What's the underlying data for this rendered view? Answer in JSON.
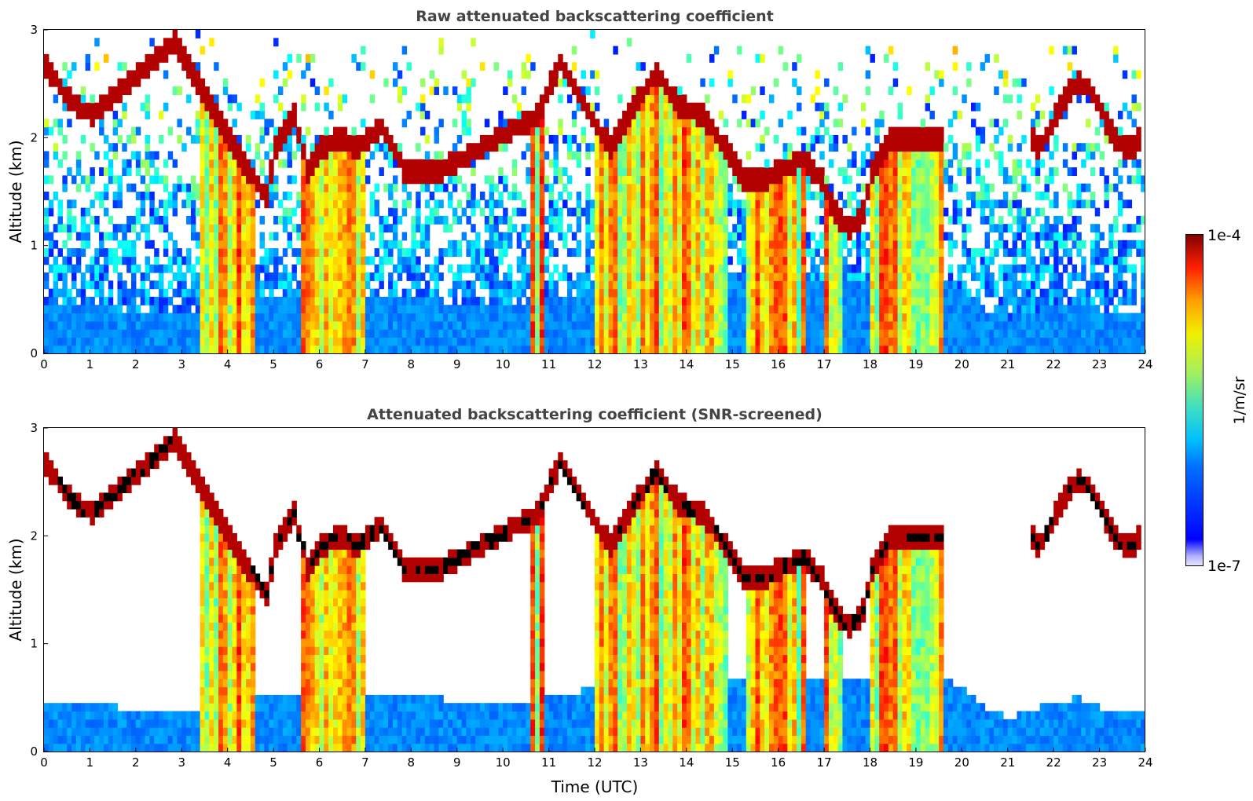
{
  "chart_data": {
    "type": "heatmap",
    "panels": [
      {
        "title": "Raw attenuated backscattering coefficient",
        "xlabel": "",
        "ylabel": "Altitude (km)",
        "xlim": [
          0,
          24
        ],
        "ylim": [
          0,
          3
        ],
        "xticks": [
          0,
          1,
          2,
          3,
          4,
          5,
          6,
          7,
          8,
          9,
          10,
          11,
          12,
          13,
          14,
          15,
          16,
          17,
          18,
          19,
          20,
          21,
          22,
          23,
          24
        ],
        "yticks": [
          0,
          1,
          2,
          3
        ],
        "screened": false
      },
      {
        "title": "Attenuated backscattering coefficient (SNR-screened)",
        "xlabel": "Time (UTC)",
        "ylabel": "Altitude (km)",
        "xlim": [
          0,
          24
        ],
        "ylim": [
          0,
          3
        ],
        "xticks": [
          0,
          1,
          2,
          3,
          4,
          5,
          6,
          7,
          8,
          9,
          10,
          11,
          12,
          13,
          14,
          15,
          16,
          17,
          18,
          19,
          20,
          21,
          22,
          23,
          24
        ],
        "yticks": [
          0,
          1,
          2,
          3
        ],
        "screened": true
      }
    ],
    "colorbar": {
      "label": "1/m/sr",
      "min_label": "1e-7",
      "max_label": "1e-4",
      "scale": "log",
      "colormap": "jet"
    },
    "cloud_layer_km": [
      [
        0.0,
        2.65
      ],
      [
        0.5,
        2.35
      ],
      [
        1.0,
        2.2
      ],
      [
        2.8,
        2.9
      ],
      [
        3.2,
        2.6
      ],
      [
        3.6,
        2.3
      ],
      [
        4.0,
        2.0
      ],
      [
        4.4,
        1.7
      ],
      [
        4.8,
        1.45
      ],
      [
        5.0,
        1.9
      ],
      [
        5.4,
        2.2
      ],
      [
        5.7,
        1.7
      ],
      [
        6.0,
        1.9
      ],
      [
        6.4,
        2.0
      ],
      [
        6.8,
        1.9
      ],
      [
        7.3,
        2.1
      ],
      [
        7.8,
        1.7
      ],
      [
        8.3,
        1.7
      ],
      [
        8.6,
        1.7
      ],
      [
        10.7,
        2.2
      ],
      [
        11.2,
        2.7
      ],
      [
        12.3,
        1.9
      ],
      [
        12.8,
        2.3
      ],
      [
        13.3,
        2.6
      ],
      [
        13.8,
        2.3
      ],
      [
        14.3,
        2.2
      ],
      [
        14.8,
        1.9
      ],
      [
        15.2,
        1.6
      ],
      [
        15.6,
        1.6
      ],
      [
        16.0,
        1.7
      ],
      [
        16.5,
        1.8
      ],
      [
        16.9,
        1.6
      ],
      [
        17.2,
        1.3
      ],
      [
        17.5,
        1.15
      ],
      [
        17.8,
        1.3
      ],
      [
        18.0,
        1.7
      ],
      [
        18.4,
        2.0
      ],
      [
        18.8,
        2.0
      ],
      [
        19.2,
        2.0
      ],
      [
        19.5,
        2.0
      ]
    ],
    "boundary_layer_top_km": [
      [
        0,
        0.45
      ],
      [
        2,
        0.4
      ],
      [
        3.4,
        0.4
      ],
      [
        4.5,
        0.5
      ],
      [
        6.0,
        0.5
      ],
      [
        8.0,
        0.5
      ],
      [
        10.5,
        0.45
      ],
      [
        12.0,
        0.6
      ],
      [
        15.0,
        0.7
      ],
      [
        17.5,
        0.7
      ],
      [
        19.6,
        0.7
      ],
      [
        20.5,
        0.4
      ],
      [
        21.0,
        0.3
      ],
      [
        21.5,
        0.4
      ],
      [
        22.0,
        0.45
      ],
      [
        22.5,
        0.5
      ],
      [
        23.0,
        0.4
      ],
      [
        23.4,
        0.4
      ]
    ]
  }
}
